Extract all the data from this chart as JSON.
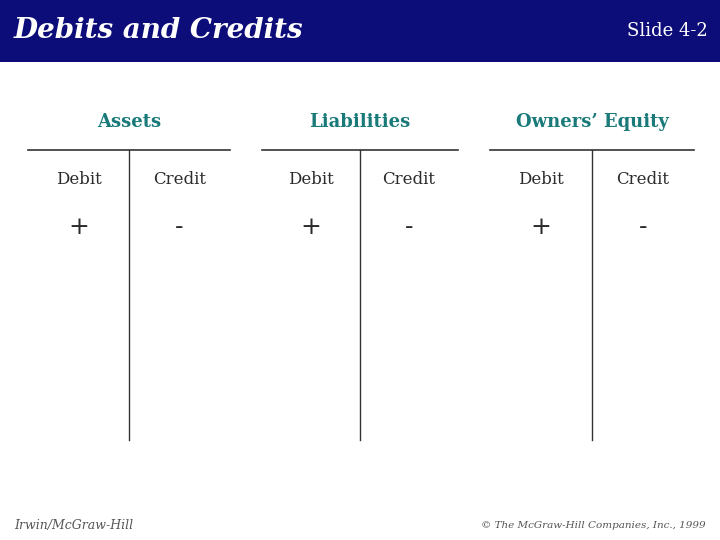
{
  "title": "Debits and Credits",
  "slide_label": "Slide 4-2",
  "header_bg": "#0d0d7a",
  "header_text_color": "#ffffff",
  "body_bg": "#ffffff",
  "teal_color": "#1a7a7a",
  "body_text_color": "#2b2b2b",
  "footer_text_color": "#555555",
  "sections": [
    {
      "label": "Assets",
      "debit_sign": "+",
      "credit_sign": "-"
    },
    {
      "label": "Liabilities",
      "debit_sign": "+",
      "credit_sign": "-"
    },
    {
      "label": "Owners’ Equity",
      "debit_sign": "+",
      "credit_sign": "-"
    }
  ],
  "footer_left": "Irwin/McGraw-Hill",
  "footer_right": "© The McGraw-Hill Companies, Inc., 1999"
}
